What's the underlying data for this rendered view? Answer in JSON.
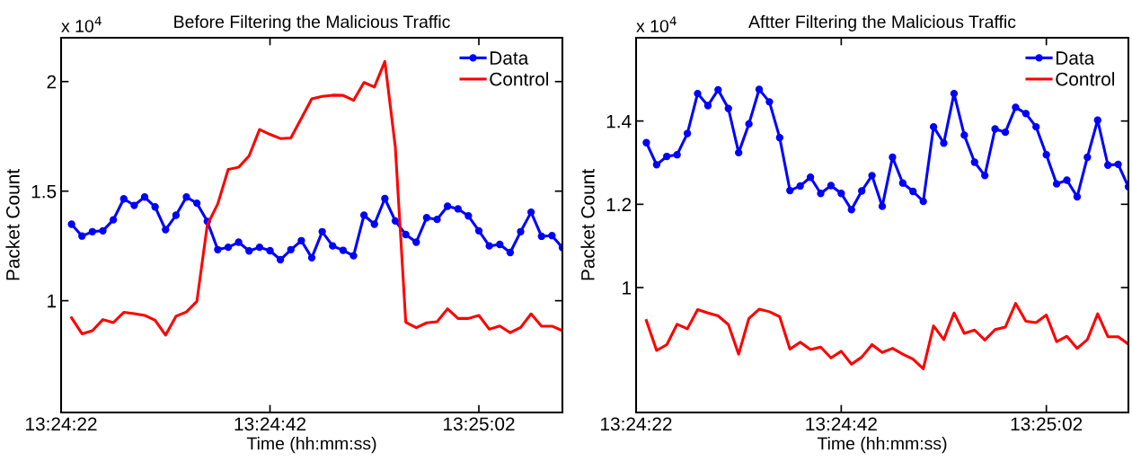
{
  "chart_data": [
    {
      "type": "line",
      "title": "Before Filtering the Malicious Traffic",
      "xlabel": "Time (hh:mm:ss)",
      "ylabel": "Packet Count",
      "annotations": [
        "x 10$^{4}$"
      ],
      "x": [
        13.406389,
        13.406667,
        13.406944,
        13.407222,
        13.4075,
        13.407778,
        13.408056,
        13.408333,
        13.408611,
        13.408889,
        13.409167,
        13.409444,
        13.409722,
        13.41,
        13.410278,
        13.410556,
        13.410833,
        13.411111,
        13.411389,
        13.411667,
        13.411944,
        13.412222,
        13.4125,
        13.412778,
        13.413056,
        13.413333,
        13.413611,
        13.413889,
        13.414167,
        13.414444,
        13.414722,
        13.415,
        13.415278,
        13.415556,
        13.415833,
        13.416111,
        13.416389,
        13.416667,
        13.416944,
        13.417222,
        13.4175,
        13.417778,
        13.418056,
        13.418333,
        13.418611,
        13.418889,
        13.419167,
        13.419444
      ],
      "series": [
        {
          "name": "Data",
          "color": "#0000ff",
          "marker": "circle",
          "values": [
            1.349,
            1.295,
            1.315,
            1.319,
            1.369,
            1.465,
            1.435,
            1.473,
            1.428,
            1.324,
            1.39,
            1.473,
            1.445,
            1.362,
            1.233,
            1.244,
            1.267,
            1.227,
            1.244,
            1.228,
            1.187,
            1.233,
            1.274,
            1.196,
            1.315,
            1.25,
            1.23,
            1.205,
            1.39,
            1.349,
            1.466,
            1.364,
            1.302,
            1.267,
            1.379,
            1.371,
            1.431,
            1.419,
            1.387,
            1.319,
            1.25,
            1.257,
            1.22,
            1.315,
            1.404,
            1.294,
            1.297,
            1.242
          ]
        },
        {
          "name": "Control",
          "color": "#ff0000",
          "marker": "none",
          "values": [
            0.922,
            0.849,
            0.863,
            0.914,
            0.9,
            0.947,
            0.941,
            0.933,
            0.911,
            0.843,
            0.929,
            0.949,
            0.997,
            1.346,
            1.442,
            1.599,
            1.609,
            1.661,
            1.781,
            1.759,
            1.74,
            1.743,
            1.832,
            1.921,
            1.932,
            1.938,
            1.937,
            1.914,
            1.996,
            1.975,
            2.092,
            1.702,
            0.902,
            0.877,
            0.899,
            0.904,
            0.963,
            0.919,
            0.919,
            0.933,
            0.87,
            0.885,
            0.854,
            0.878,
            0.94,
            0.884,
            0.884,
            0.863
          ]
        }
      ],
      "xlim": [
        13.406111,
        13.419444
      ],
      "xticks": [
        {
          "value": 13.406111,
          "label": "13:24:22"
        },
        {
          "value": 13.411667,
          "label": "13:24:42"
        },
        {
          "value": 13.417222,
          "label": "13:25:02"
        }
      ],
      "ylim": [
        0.49,
        2.2
      ],
      "yticks": [
        1,
        1.5,
        2
      ],
      "grid": false,
      "legend": "top right",
      "line_style": "solid"
    },
    {
      "type": "line",
      "title": "Aftter Filtering the Malicious Traffic",
      "xlabel": "Time (hh:mm:ss)",
      "ylabel": "Packet Count",
      "annotations": [
        "x 10$^{4}$"
      ],
      "x": [
        13.406389,
        13.406667,
        13.406944,
        13.407222,
        13.4075,
        13.407778,
        13.408056,
        13.408333,
        13.408611,
        13.408889,
        13.409167,
        13.409444,
        13.409722,
        13.41,
        13.410278,
        13.410556,
        13.410833,
        13.411111,
        13.411389,
        13.411667,
        13.411944,
        13.412222,
        13.4125,
        13.412778,
        13.413056,
        13.413333,
        13.413611,
        13.413889,
        13.414167,
        13.414444,
        13.414722,
        13.415,
        13.415278,
        13.415556,
        13.415833,
        13.416111,
        13.416389,
        13.416667,
        13.416944,
        13.417222,
        13.4175,
        13.417778,
        13.418056,
        13.418333,
        13.418611,
        13.418889,
        13.419167,
        13.419444
      ],
      "series": [
        {
          "name": "Data",
          "color": "#0000ff",
          "marker": "circle",
          "values": [
            1.348,
            1.295,
            1.315,
            1.319,
            1.37,
            1.466,
            1.437,
            1.475,
            1.43,
            1.324,
            1.393,
            1.476,
            1.446,
            1.36,
            1.233,
            1.244,
            1.265,
            1.226,
            1.245,
            1.226,
            1.187,
            1.232,
            1.269,
            1.195,
            1.313,
            1.251,
            1.231,
            1.207,
            1.386,
            1.347,
            1.466,
            1.366,
            1.301,
            1.269,
            1.381,
            1.373,
            1.433,
            1.418,
            1.386,
            1.319,
            1.249,
            1.258,
            1.218,
            1.313,
            1.402,
            1.294,
            1.296,
            1.242
          ]
        },
        {
          "name": "Control",
          "color": "#ff0000",
          "marker": "none",
          "values": [
            0.921,
            0.849,
            0.863,
            0.912,
            0.901,
            0.947,
            0.939,
            0.932,
            0.911,
            0.84,
            0.926,
            0.948,
            0.942,
            0.93,
            0.852,
            0.869,
            0.851,
            0.857,
            0.831,
            0.847,
            0.816,
            0.833,
            0.863,
            0.844,
            0.854,
            0.84,
            0.828,
            0.805,
            0.908,
            0.875,
            0.939,
            0.89,
            0.898,
            0.874,
            0.899,
            0.905,
            0.962,
            0.919,
            0.916,
            0.934,
            0.87,
            0.883,
            0.854,
            0.875,
            0.937,
            0.882,
            0.882,
            0.864
          ]
        }
      ],
      "xlim": [
        13.406111,
        13.419444
      ],
      "xticks": [
        {
          "value": 13.406111,
          "label": "13:24:22"
        },
        {
          "value": 13.411667,
          "label": "13:24:42"
        },
        {
          "value": 13.417222,
          "label": "13:25:02"
        }
      ],
      "ylim": [
        0.7,
        1.6
      ],
      "yticks": [
        1,
        1.2,
        1.4
      ],
      "grid": false,
      "legend": "top right",
      "line_style": "solid"
    }
  ]
}
